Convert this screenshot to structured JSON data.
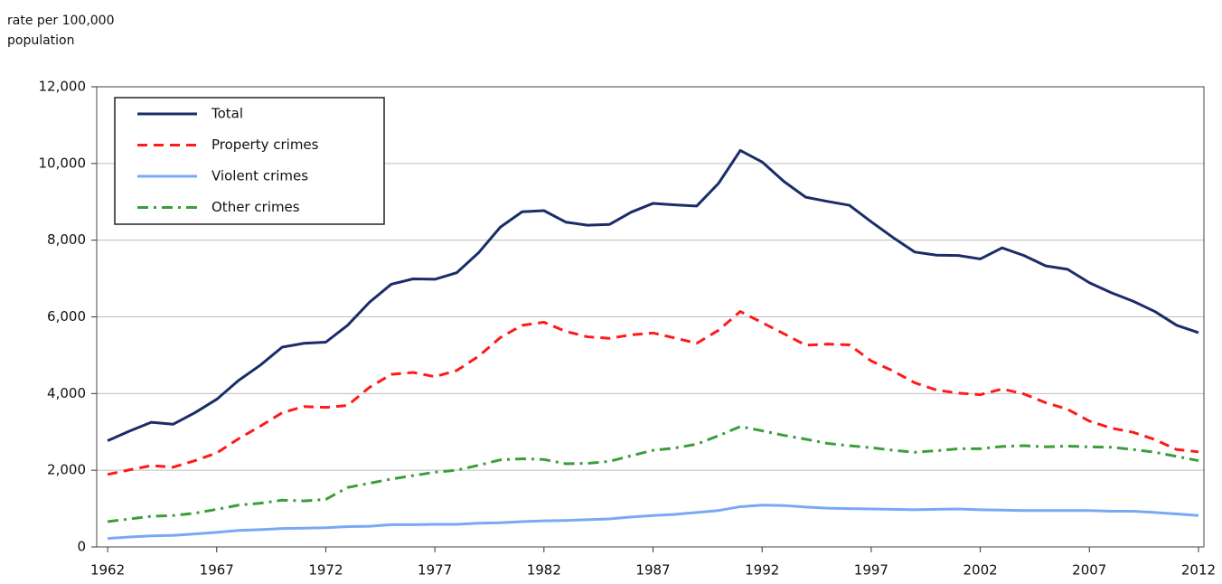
{
  "chart_data": {
    "type": "line",
    "y_label": "rate per 100,000 population",
    "x": [
      1962,
      1963,
      1964,
      1965,
      1966,
      1967,
      1968,
      1969,
      1970,
      1971,
      1972,
      1973,
      1974,
      1975,
      1976,
      1977,
      1978,
      1979,
      1980,
      1981,
      1982,
      1983,
      1984,
      1985,
      1986,
      1987,
      1988,
      1989,
      1990,
      1991,
      1992,
      1993,
      1994,
      1995,
      1996,
      1997,
      1998,
      1999,
      2000,
      2001,
      2002,
      2003,
      2004,
      2005,
      2006,
      2007,
      2008,
      2009,
      2010,
      2011,
      2012
    ],
    "xlim": [
      1961.5,
      2012.25
    ],
    "xticks": [
      1962,
      1967,
      1972,
      1977,
      1982,
      1987,
      1992,
      1997,
      2002,
      2007,
      2012
    ],
    "ylim": [
      0,
      12000
    ],
    "yticks": [
      0,
      {
        "value": 2000,
        "label": "2,000"
      },
      {
        "value": 4000,
        "label": "4,000"
      },
      {
        "value": 6000,
        "label": "6,000"
      },
      {
        "value": 8000,
        "label": "8,000"
      },
      {
        "value": 10000,
        "label": "10,000"
      },
      {
        "value": 12000,
        "label": "12,000"
      }
    ],
    "grid": true,
    "legend": "top-left",
    "series": [
      {
        "name": "Total",
        "color": "#1b2d68",
        "style": "solid",
        "values": [
          2770,
          3020,
          3250,
          3200,
          3500,
          3850,
          4340,
          4740,
          5210,
          5310,
          5340,
          5780,
          6380,
          6850,
          6990,
          6980,
          7150,
          7670,
          8340,
          8740,
          8770,
          8470,
          8390,
          8410,
          8730,
          8960,
          8920,
          8890,
          9480,
          10340,
          10040,
          9530,
          9120,
          9010,
          8910,
          8480,
          8070,
          7690,
          7610,
          7600,
          7510,
          7800,
          7600,
          7330,
          7240,
          6890,
          6630,
          6410,
          6140,
          5780,
          5590
        ]
      },
      {
        "name": "Property crimes",
        "color": "#ff1a1a",
        "style": "dashed",
        "values": [
          1890,
          2010,
          2120,
          2080,
          2250,
          2450,
          2820,
          3150,
          3500,
          3660,
          3640,
          3690,
          4160,
          4500,
          4550,
          4440,
          4600,
          4970,
          5460,
          5780,
          5860,
          5620,
          5480,
          5440,
          5530,
          5580,
          5450,
          5310,
          5650,
          6140,
          5850,
          5560,
          5260,
          5290,
          5270,
          4850,
          4590,
          4280,
          4090,
          4010,
          3970,
          4120,
          3990,
          3760,
          3590,
          3280,
          3100,
          2990,
          2800,
          2540,
          2480
        ]
      },
      {
        "name": "Violent crimes",
        "color": "#7aa8f5",
        "style": "solid",
        "values": [
          220,
          260,
          290,
          300,
          340,
          380,
          430,
          450,
          480,
          490,
          500,
          530,
          540,
          580,
          580,
          590,
          590,
          620,
          630,
          660,
          680,
          690,
          710,
          730,
          780,
          820,
          850,
          900,
          950,
          1050,
          1090,
          1080,
          1040,
          1010,
          1000,
          990,
          980,
          970,
          980,
          990,
          970,
          960,
          950,
          950,
          950,
          950,
          930,
          930,
          900,
          860,
          820
        ]
      },
      {
        "name": "Other crimes",
        "color": "#3a9e3a",
        "style": "dashdot",
        "values": [
          660,
          730,
          800,
          820,
          880,
          980,
          1090,
          1140,
          1220,
          1200,
          1240,
          1550,
          1660,
          1770,
          1860,
          1950,
          2000,
          2130,
          2270,
          2300,
          2280,
          2170,
          2180,
          2230,
          2380,
          2520,
          2580,
          2680,
          2900,
          3140,
          3030,
          2910,
          2810,
          2700,
          2640,
          2590,
          2520,
          2470,
          2510,
          2560,
          2560,
          2620,
          2640,
          2610,
          2630,
          2610,
          2600,
          2540,
          2470,
          2360,
          2250
        ]
      }
    ]
  }
}
